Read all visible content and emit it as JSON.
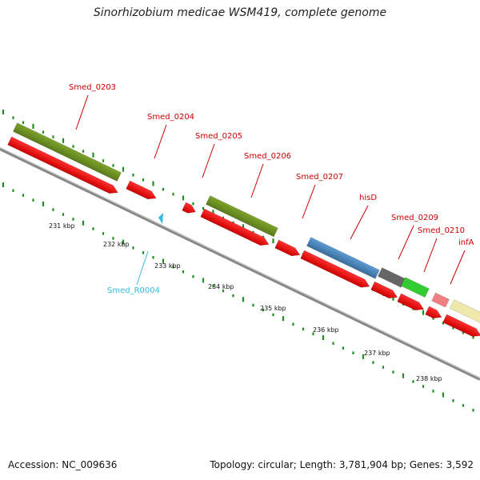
{
  "title": "Sinorhizobium medicae WSM419, complete genome",
  "footer": {
    "accession": "Accession: NC_009636",
    "summary": "Topology: circular; Length: 3,781,904 bp; Genes: 3,592"
  },
  "colors": {
    "cds": "#ee0000",
    "gene_olive": "#6b8e23",
    "gene_blue": "#4682b4",
    "gene_gray": "#666666",
    "gene_green": "#33cc33",
    "gene_pink": "#f08080",
    "gene_khaki": "#eee8aa",
    "backbone": "#888888",
    "gc_dots": "#228b22",
    "label_red": "#cc0000",
    "label_cyan": "#33bbdd"
  },
  "gene_labels": [
    {
      "text": "Smed_0203",
      "kind": "gene"
    },
    {
      "text": "Smed_0204",
      "kind": "gene"
    },
    {
      "text": "Smed_0205",
      "kind": "gene"
    },
    {
      "text": "Smed_0206",
      "kind": "gene"
    },
    {
      "text": "Smed_0207",
      "kind": "gene"
    },
    {
      "text": "hisD",
      "kind": "gene"
    },
    {
      "text": "Smed_0209",
      "kind": "gene"
    },
    {
      "text": "Smed_0210",
      "kind": "gene"
    },
    {
      "text": "infA",
      "kind": "gene"
    },
    {
      "text": "Smed_R0004",
      "kind": "rna"
    }
  ],
  "ticks": [
    "231 kbp",
    "232 kbp",
    "233 kbp",
    "234 kbp",
    "235 kbp",
    "236 kbp",
    "237 kbp",
    "238 kbp"
  ]
}
